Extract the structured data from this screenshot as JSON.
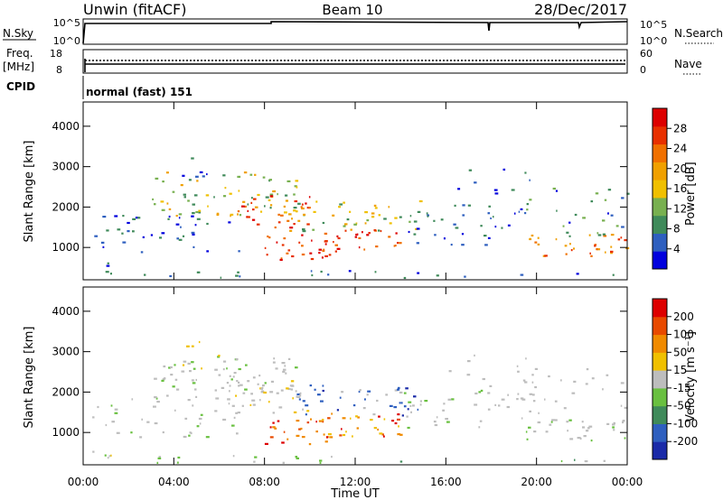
{
  "header": {
    "title": "Unwin (fitACF)",
    "beam": "Beam 10",
    "date": "28/Dec/2017"
  },
  "panels": {
    "nsky": {
      "label": "N.Sky",
      "ticks_left": [
        "10^5",
        "10^0"
      ],
      "ticks_right": [
        "10^5",
        "10^0"
      ],
      "right_label": "N.Search"
    },
    "freq": {
      "label1": "Freq.",
      "label2": "[MHz]",
      "ticks_left": [
        "18",
        "8"
      ],
      "ticks_right": [
        "60",
        "0"
      ],
      "right_label": "Nave"
    },
    "cpid": {
      "label": "CPID",
      "value": "normal (fast) 151"
    }
  },
  "power_colorbar": {
    "label": "Power [dB]",
    "ticks": [
      "28",
      "24",
      "20",
      "16",
      "12",
      "8",
      "4"
    ],
    "colors": [
      "#0000dd",
      "#2e5fbf",
      "#3f8a5a",
      "#78b050",
      "#f0c000",
      "#f0a000",
      "#f07000",
      "#e83000",
      "#dd0000"
    ]
  },
  "velocity_colorbar": {
    "label": "Velocity [m s⁻¹]",
    "ticks": [
      "200",
      "100",
      "50",
      "15",
      "-15",
      "-50",
      "-100",
      "-200"
    ],
    "colors": [
      "#1a2aa8",
      "#2e5fbf",
      "#3f8a5a",
      "#69c040",
      "#bdbdbd",
      "#f0c000",
      "#f08a00",
      "#e84a00",
      "#dd0000"
    ]
  },
  "chart_data": {
    "type": "heatmap",
    "xlabel": "Time UT",
    "ylabel": "Slant Range [km]",
    "x_ticks": [
      "00:00",
      "04:00",
      "08:00",
      "12:00",
      "16:00",
      "20:00",
      "00:00"
    ],
    "x_range_hours": [
      0,
      24
    ],
    "y_range_km": [
      200,
      4600
    ],
    "y_ticks": [
      "4000",
      "3000",
      "2000",
      "1000"
    ],
    "panels": [
      "Power [dB]",
      "Velocity [m s⁻¹]"
    ]
  }
}
